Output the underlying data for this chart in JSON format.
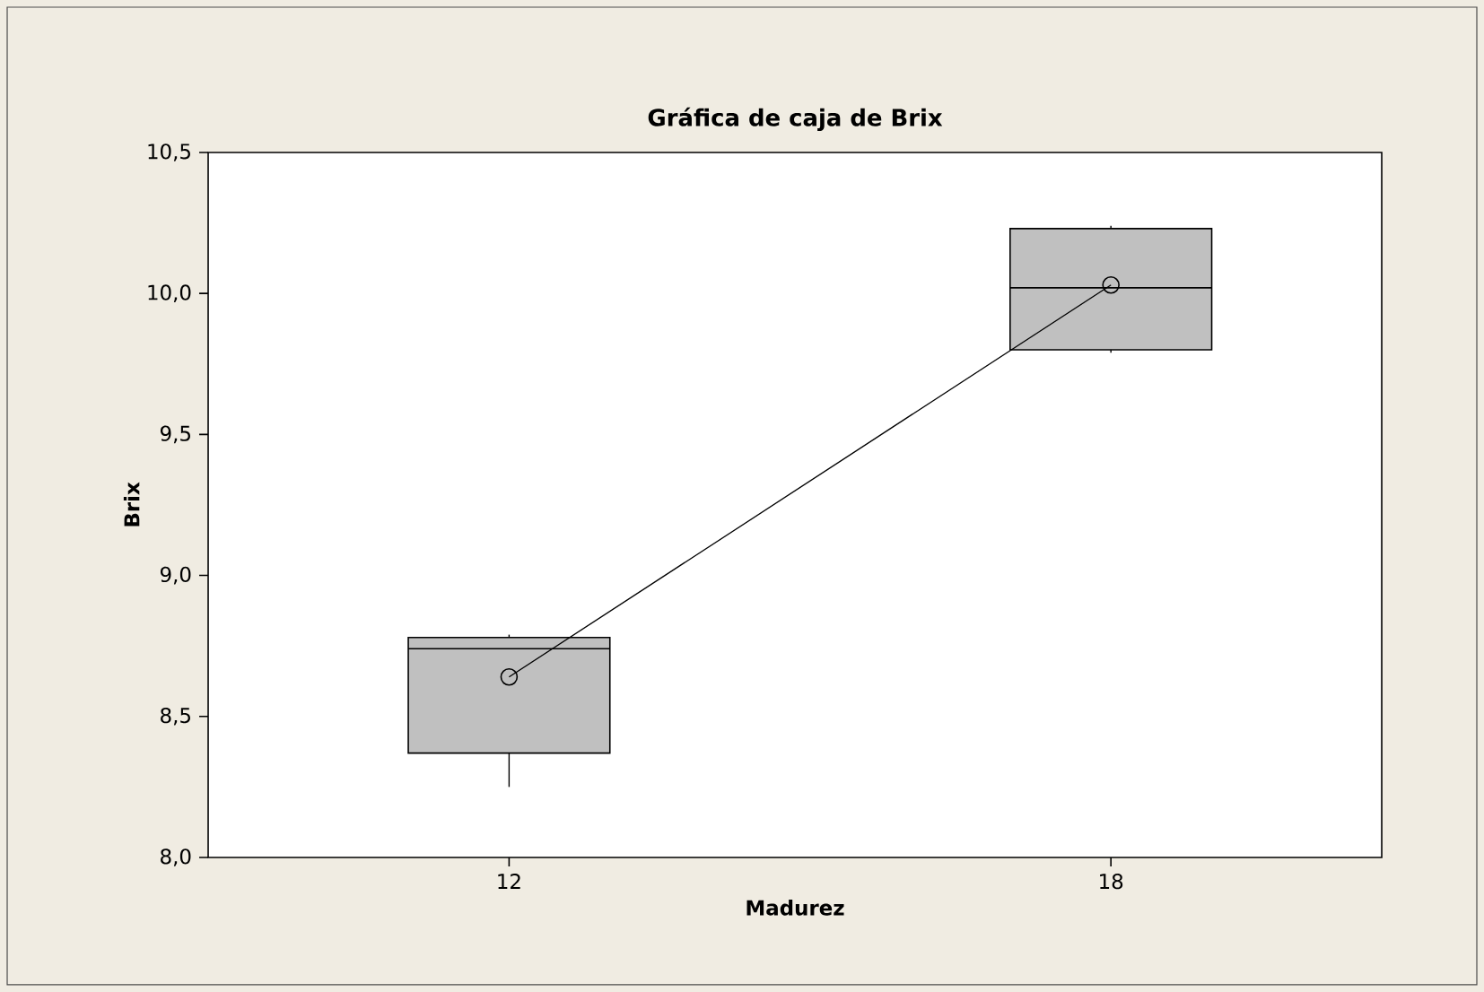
{
  "chart_data": {
    "type": "box",
    "title": "Gráfica de caja de Brix",
    "xlabel": "Madurez",
    "ylabel": "Brix",
    "categories": [
      "12",
      "18"
    ],
    "ylim": [
      8.0,
      10.5
    ],
    "yticks": [
      {
        "value": 8.0,
        "label": "8,0"
      },
      {
        "value": 8.5,
        "label": "8,5"
      },
      {
        "value": 9.0,
        "label": "9,0"
      },
      {
        "value": 9.5,
        "label": "9,5"
      },
      {
        "value": 10.0,
        "label": "10,0"
      },
      {
        "value": 10.5,
        "label": "10,5"
      }
    ],
    "grid": false,
    "marker": "circle",
    "series": [
      {
        "type": "box",
        "color": "#c0c0c0",
        "boxes": [
          {
            "low": 8.25,
            "q1": 8.37,
            "median": 8.74,
            "q3": 8.78,
            "high": 8.79
          },
          {
            "low": 9.79,
            "q1": 9.8,
            "median": 10.02,
            "q3": 10.23,
            "high": 10.24
          }
        ]
      },
      {
        "type": "line",
        "color": "#000000",
        "x": [
          "12",
          "18"
        ],
        "values": [
          8.64,
          10.03
        ]
      }
    ]
  }
}
